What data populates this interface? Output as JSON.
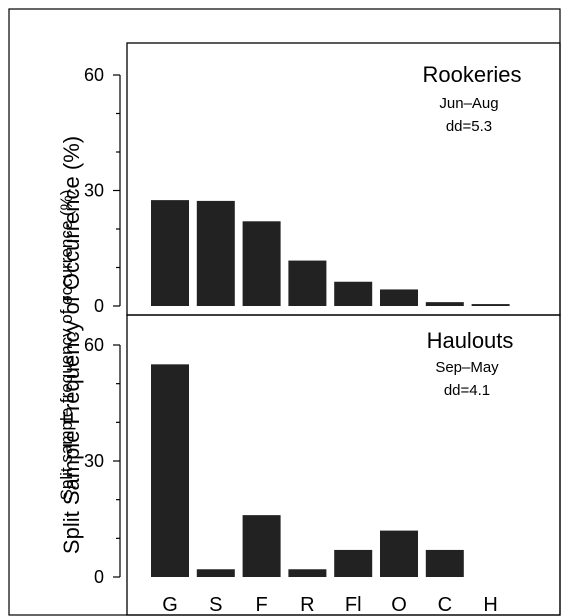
{
  "chart_data": {
    "type": "bar",
    "categories": [
      "G",
      "S",
      "F",
      "R",
      "Fl",
      "O",
      "C",
      "H"
    ],
    "ylabels": [
      "Split Sample Frequency of Occurrence (%)",
      "Split sample frequency of occurrence (%)"
    ],
    "panels": [
      {
        "title": "Rookeries",
        "subtitle": "Jun–Aug",
        "annotation": "dd=5.3",
        "ylim": [
          0,
          60
        ],
        "yticks": [
          0,
          30,
          60
        ],
        "values": [
          27.5,
          27.3,
          22.0,
          11.8,
          6.3,
          4.3,
          1.0,
          0.5
        ]
      },
      {
        "title": "Haulouts",
        "subtitle": "Sep–May",
        "annotation": "dd=4.1",
        "ylim": [
          0,
          60
        ],
        "yticks": [
          0,
          30,
          60
        ],
        "values": [
          55.0,
          2.0,
          16.0,
          2.0,
          7.0,
          12.0,
          7.0,
          0
        ]
      }
    ],
    "bar_color": "#222222",
    "grid": false
  }
}
